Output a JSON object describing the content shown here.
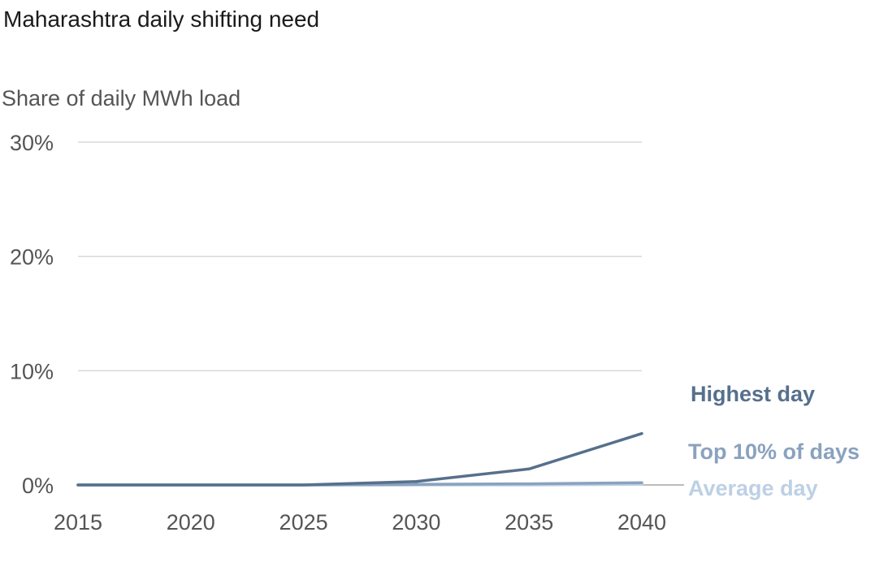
{
  "chart_data": {
    "type": "line",
    "title": "Maharashtra daily shifting need",
    "ylabel": "Share of daily MWh load",
    "xlabel": "",
    "x": [
      2015,
      2020,
      2025,
      2030,
      2035,
      2040
    ],
    "x_tick_labels": [
      "2015",
      "2020",
      "2025",
      "2030",
      "2035",
      "2040"
    ],
    "xlim": [
      2015,
      2040
    ],
    "ylim": [
      0,
      30
    ],
    "y_ticks": [
      0,
      10,
      20,
      30
    ],
    "y_tick_labels": [
      "0%",
      "10%",
      "20%",
      "30%"
    ],
    "grid": true,
    "legend": "direct labels at right",
    "series": [
      {
        "name": "Highest day",
        "color": "#56708c",
        "values": [
          0,
          0,
          0,
          0.3,
          1.4,
          4.5
        ]
      },
      {
        "name": "Top 10% of days",
        "color": "#8aa2be",
        "values": [
          0,
          0,
          0,
          0.05,
          0.1,
          0.2
        ]
      },
      {
        "name": "Average day",
        "color": "#bdd0e4",
        "values": [
          0,
          0,
          0,
          0,
          0,
          0.05
        ]
      }
    ]
  }
}
